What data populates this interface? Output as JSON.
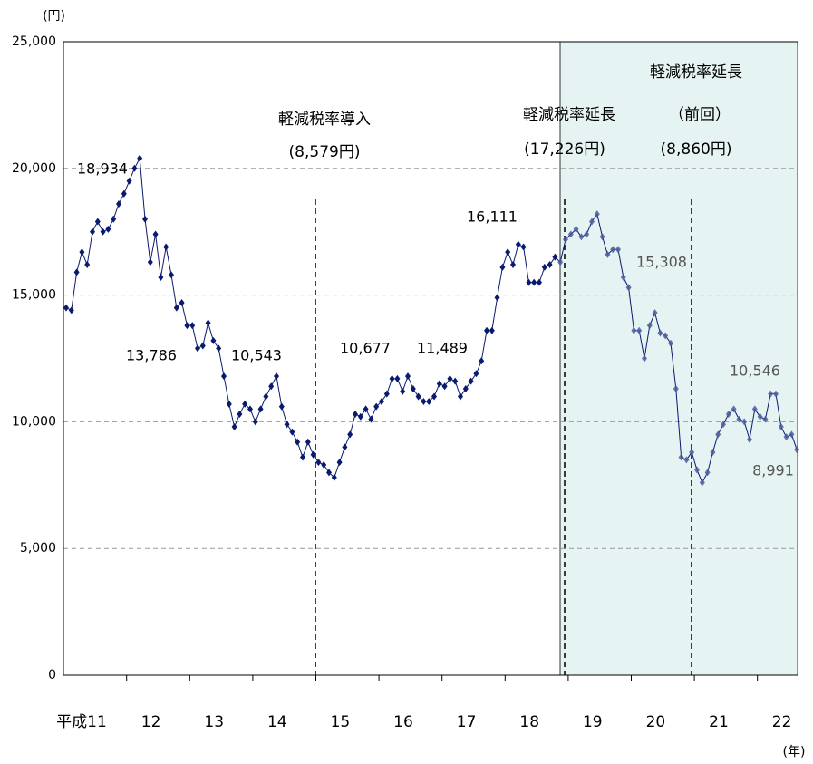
{
  "chart_data": {
    "type": "line",
    "y_unit": "(円)",
    "x_unit": "(年)",
    "categories": [
      "平成11",
      null,
      null,
      null,
      null,
      null,
      null,
      null,
      null,
      null,
      null,
      null,
      "12",
      null,
      null,
      null,
      null,
      null,
      null,
      null,
      null,
      null,
      null,
      null,
      "13",
      null,
      null,
      null,
      null,
      null,
      null,
      null,
      null,
      null,
      null,
      null,
      "14",
      null,
      null,
      null,
      null,
      null,
      null,
      null,
      null,
      null,
      null,
      null,
      "15",
      null,
      null,
      null,
      null,
      null,
      null,
      null,
      null,
      null,
      null,
      null,
      "16",
      null,
      null,
      null,
      null,
      null,
      null,
      null,
      null,
      null,
      null,
      null,
      "17",
      null,
      null,
      null,
      null,
      null,
      null,
      null,
      null,
      null,
      null,
      null,
      "18",
      null,
      null,
      null,
      null,
      null,
      null,
      null,
      null,
      null,
      null,
      null,
      "19",
      null,
      null,
      null,
      null,
      null,
      null,
      null,
      null,
      null,
      null,
      null,
      "20",
      null,
      null,
      null,
      null,
      null,
      null,
      null,
      null,
      null,
      null,
      null,
      "21",
      null,
      null,
      null,
      null,
      null,
      null,
      null,
      null,
      null,
      null,
      null,
      "22",
      null,
      null,
      null,
      null,
      null,
      null,
      null
    ],
    "series": [
      {
        "color": "#0a1a6e",
        "values": [
          14500,
          14400,
          15900,
          16700,
          16200,
          17500,
          17900,
          17500,
          17600,
          18000,
          18600,
          19000,
          19500,
          20000,
          20400,
          18000,
          16300,
          17400,
          15700,
          16900,
          15800,
          14500,
          14700,
          13800,
          13800,
          12900,
          13000,
          13900,
          13200,
          12900,
          11800,
          10700,
          9800,
          10300,
          10700,
          10500,
          10000,
          10500,
          11000,
          11400,
          11800,
          10600,
          9900,
          9600,
          9200,
          8600,
          9200,
          8700,
          8400,
          8300,
          8000,
          7800,
          8400,
          9000,
          9500,
          10300,
          10200,
          10500,
          10100,
          10600,
          10800,
          11100,
          11700,
          11700,
          11200,
          11800,
          11300,
          11000,
          10800,
          10800,
          11000,
          11500,
          11400,
          11700,
          11600,
          11000,
          11300,
          11600,
          11900,
          12400,
          13600,
          13600,
          14900,
          16100,
          16700,
          16200,
          17000,
          16900,
          15500,
          15500,
          15500,
          16100,
          16200,
          16500,
          16300,
          17200,
          17400,
          17600,
          17300,
          17400,
          17900,
          18200,
          17300,
          16600,
          16800,
          16800,
          15700,
          15300,
          13600,
          13600,
          12500,
          13800,
          14300,
          13500,
          13400,
          13100,
          11300,
          8600,
          8500,
          8800,
          8100,
          7600,
          8000,
          8800,
          9500,
          9900,
          10300,
          10500,
          10100,
          10000,
          9300,
          10500,
          10200,
          10100,
          11100,
          11100,
          9800,
          9400,
          9500,
          8900
        ]
      }
    ],
    "ylim": [
      0,
      25000
    ],
    "yticks": [
      {
        "value": 0,
        "label": "0"
      },
      {
        "value": 5000,
        "label": "5,000"
      },
      {
        "value": 10000,
        "label": "10,000"
      },
      {
        "value": 15000,
        "label": "15,000"
      },
      {
        "value": 20000,
        "label": "20,000"
      },
      {
        "value": 25000,
        "label": "25,000"
      }
    ],
    "grid": true,
    "annotations": [
      "18,934",
      "13,786",
      "10,543",
      "10,677",
      "11,489",
      "16,111",
      "15,308",
      "10,546",
      "8,991",
      "軽減税率導入",
      "(8,579円)",
      "軽減税率延長",
      "(17,226円)",
      "軽減税率延長",
      "（前回）",
      "(8,860円)"
    ]
  }
}
